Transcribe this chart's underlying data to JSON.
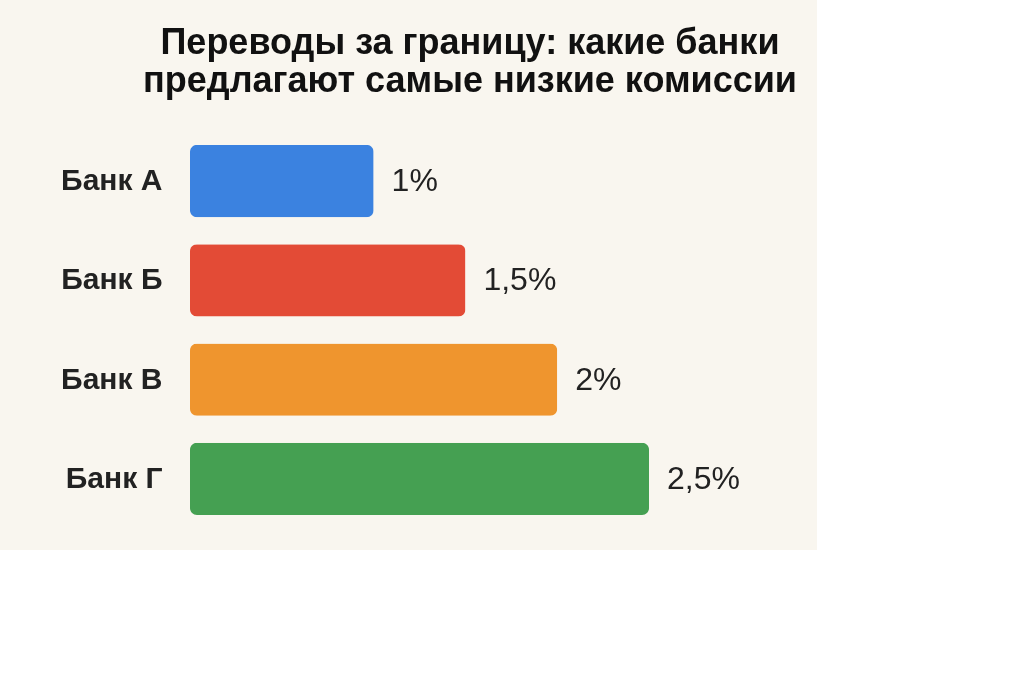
{
  "chart_data": {
    "type": "bar",
    "orientation": "horizontal",
    "title": [
      "Переводы за границу: какие банки",
      "предлагают самые низкие комиссии"
    ],
    "categories": [
      "Банк А",
      "Банк Б",
      "Банк В",
      "Банк Г"
    ],
    "values": [
      1,
      1.5,
      2,
      2.5
    ],
    "colors": [
      "#3b82e0",
      "#e34b36",
      "#ef952e",
      "#45a052"
    ],
    "value_labels": [
      "1%",
      "1,5%",
      "2%",
      "2,5%"
    ]
  }
}
